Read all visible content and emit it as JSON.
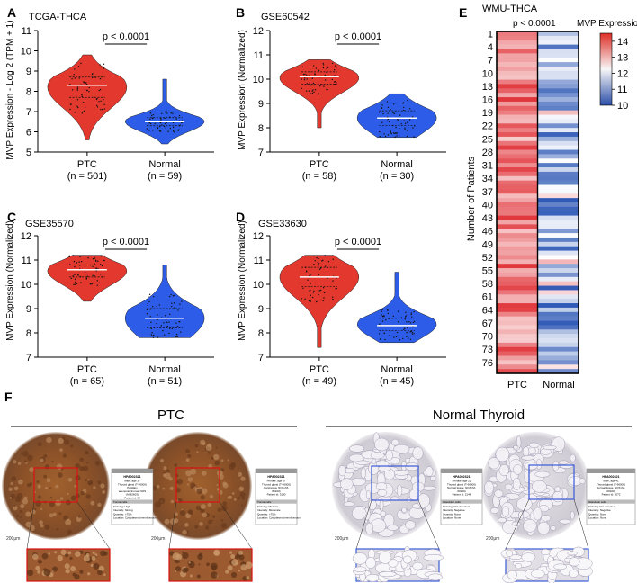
{
  "panels": {
    "A": {
      "letter": "A",
      "title": "TCGA-THCA",
      "ylabel": "MVP Expression - Log 2 (TPM + 1)",
      "pvalue": "p < 0.0001"
    },
    "B": {
      "letter": "B",
      "title": "GSE60542",
      "ylabel": "MVP Expression  (Normalized)",
      "pvalue": "p < 0.0001"
    },
    "C": {
      "letter": "C",
      "title": "GSE35570",
      "ylabel": "MVP Expression  (Normalized)",
      "pvalue": "p < 0.0001"
    },
    "D": {
      "letter": "D",
      "title": "GSE33630",
      "ylabel": "MVP Expression  (Normalized)",
      "pvalue": "p < 0.0001"
    },
    "E": {
      "letter": "E",
      "title": "WMU-THCA",
      "pvalue": "p < 0.0001",
      "legend_title": "MVP Expression",
      "ylabel": "Number of Patients",
      "xlabels": [
        "PTC",
        "Normal"
      ]
    },
    "F": {
      "letter": "F",
      "ptc_title": "PTC",
      "normal_title": "Normal Thyroid",
      "scale": "200μm",
      "cards": [
        {
          "head": "HPA002321",
          "lines": [
            "Male, age 37",
            "Thyroid gland (T-96000)",
            "Papillary",
            "adenocarcinoma, NOS",
            "(M-82603)",
            "Patient id: 98"
          ],
          "section": "Tumor cells",
          "rows": [
            "Staining: High",
            "Intensity: Strong",
            "Quantity: >75%",
            "Location: Cytoplasmic/membranous"
          ]
        },
        {
          "head": "HPA002321",
          "lines": [
            "Female, age 67",
            "Thyroid gland (T-96000)",
            "Carcinoma, NOS (M-",
            "80103)",
            "Patient id: 3180"
          ],
          "section": "Tumor cells",
          "rows": [
            "Staining: Medium",
            "Intensity: Moderate",
            "Quantity: >75%",
            "Location: Cytoplasmic/membranous"
          ]
        },
        {
          "head": "HPA002321",
          "lines": [
            "Female, age 22",
            "Thyroid gland (T-96000)",
            "Normal tissue, NOS (M-",
            "00100)",
            "Patient id: 2148"
          ],
          "section": "Glandular cells",
          "rows": [
            "Staining: Not detected",
            "Intensity: Negative",
            "Quantity: None",
            "Location: None"
          ]
        },
        {
          "head": "HPA002321",
          "lines": [
            "Male, age 41",
            "Thyroid gland (T-96000)",
            "Normal tissue, NOS (M-",
            "00100)",
            "Patient id: 2072"
          ],
          "section": "Glandular cells",
          "rows": [
            "Staining: Not detected",
            "Intensity: Negative",
            "Quantity: None",
            "Location: None"
          ]
        }
      ]
    }
  },
  "chart_data": [
    {
      "panel": "A",
      "type": "violin",
      "title": "TCGA-THCA",
      "ylabel": "MVP Expression - Log 2 (TPM + 1)",
      "ylim": [
        5,
        11
      ],
      "yticks": [
        5,
        6,
        7,
        8,
        9,
        10,
        11
      ],
      "categories": [
        "PTC",
        "Normal"
      ],
      "category_labels": [
        "PTC",
        "Normal"
      ],
      "n_labels": [
        "(n = 501)",
        "(n = 59)"
      ],
      "series": [
        {
          "name": "PTC",
          "median": 8.3,
          "q1": 7.7,
          "q3": 8.7,
          "min": 5.6,
          "max": 9.8
        },
        {
          "name": "Normal",
          "median": 6.5,
          "q1": 6.3,
          "q3": 6.7,
          "min": 5.4,
          "max": 8.6
        }
      ],
      "annotation": "p < 0.0001"
    },
    {
      "panel": "B",
      "type": "violin",
      "title": "GSE60542",
      "ylabel": "MVP Expression  (Normalized)",
      "ylim": [
        7,
        12
      ],
      "yticks": [
        7,
        8,
        9,
        10,
        11,
        12
      ],
      "categories": [
        "PTC",
        "Normal"
      ],
      "category_labels": [
        "PTC",
        "Normal"
      ],
      "n_labels": [
        "(n = 58)",
        "(n = 30)"
      ],
      "series": [
        {
          "name": "PTC",
          "median": 10.1,
          "q1": 9.8,
          "q3": 10.3,
          "min": 8.0,
          "max": 10.8
        },
        {
          "name": "Normal",
          "median": 8.4,
          "q1": 8.1,
          "q3": 8.7,
          "min": 7.6,
          "max": 9.4
        }
      ],
      "annotation": "p < 0.0001"
    },
    {
      "panel": "C",
      "type": "violin",
      "title": "GSE35570",
      "ylabel": "MVP Expression  (Normalized)",
      "ylim": [
        7,
        12
      ],
      "yticks": [
        7,
        8,
        9,
        10,
        11,
        12
      ],
      "categories": [
        "PTC",
        "Normal"
      ],
      "category_labels": [
        "PTC",
        "Normal"
      ],
      "n_labels": [
        "(n = 65)",
        "(n = 51)"
      ],
      "series": [
        {
          "name": "PTC",
          "median": 10.6,
          "q1": 10.3,
          "q3": 10.8,
          "min": 9.3,
          "max": 11.2
        },
        {
          "name": "Normal",
          "median": 8.6,
          "q1": 8.2,
          "q3": 9.0,
          "min": 7.8,
          "max": 10.8
        }
      ],
      "annotation": "p < 0.0001"
    },
    {
      "panel": "D",
      "type": "violin",
      "title": "GSE33630",
      "ylabel": "MVP Expression  (Normalized)",
      "ylim": [
        7,
        12
      ],
      "yticks": [
        7,
        8,
        9,
        10,
        11,
        12
      ],
      "categories": [
        "PTC",
        "Normal"
      ],
      "category_labels": [
        "PTC",
        "Normal"
      ],
      "n_labels": [
        "(n = 49)",
        "(n = 45)"
      ],
      "series": [
        {
          "name": "PTC",
          "median": 10.3,
          "q1": 9.9,
          "q3": 10.7,
          "min": 7.4,
          "max": 11.2
        },
        {
          "name": "Normal",
          "median": 8.3,
          "q1": 8.1,
          "q3": 8.6,
          "min": 7.6,
          "max": 10.5
        }
      ],
      "annotation": "p < 0.0001"
    },
    {
      "panel": "E",
      "type": "heatmap",
      "title": "WMU-THCA",
      "ylabel": "Number of Patients",
      "xlabels": [
        "PTC",
        "Normal"
      ],
      "yticks": [
        "1",
        "4",
        "7",
        "10",
        "13",
        "16",
        "19",
        "22",
        "25",
        "28",
        "31",
        "34",
        "37",
        "40",
        "43",
        "46",
        "49",
        "52",
        "55",
        "58",
        "61",
        "64",
        "67",
        "70",
        "73",
        "76"
      ],
      "colorbar": {
        "title": "MVP Expression",
        "ticks": [
          "14",
          "13",
          "12",
          "11",
          "10"
        ],
        "range": [
          10,
          14.5
        ],
        "low_color": "#2e58b6",
        "mid_color": "#ffffff",
        "high_color": "#e0353a"
      },
      "rows": 78,
      "annotation": "p < 0.0001"
    }
  ],
  "colors": {
    "ptc": "#e2382e",
    "normal": "#2d5de8",
    "high": "#e0353a",
    "low": "#2e58b6"
  }
}
